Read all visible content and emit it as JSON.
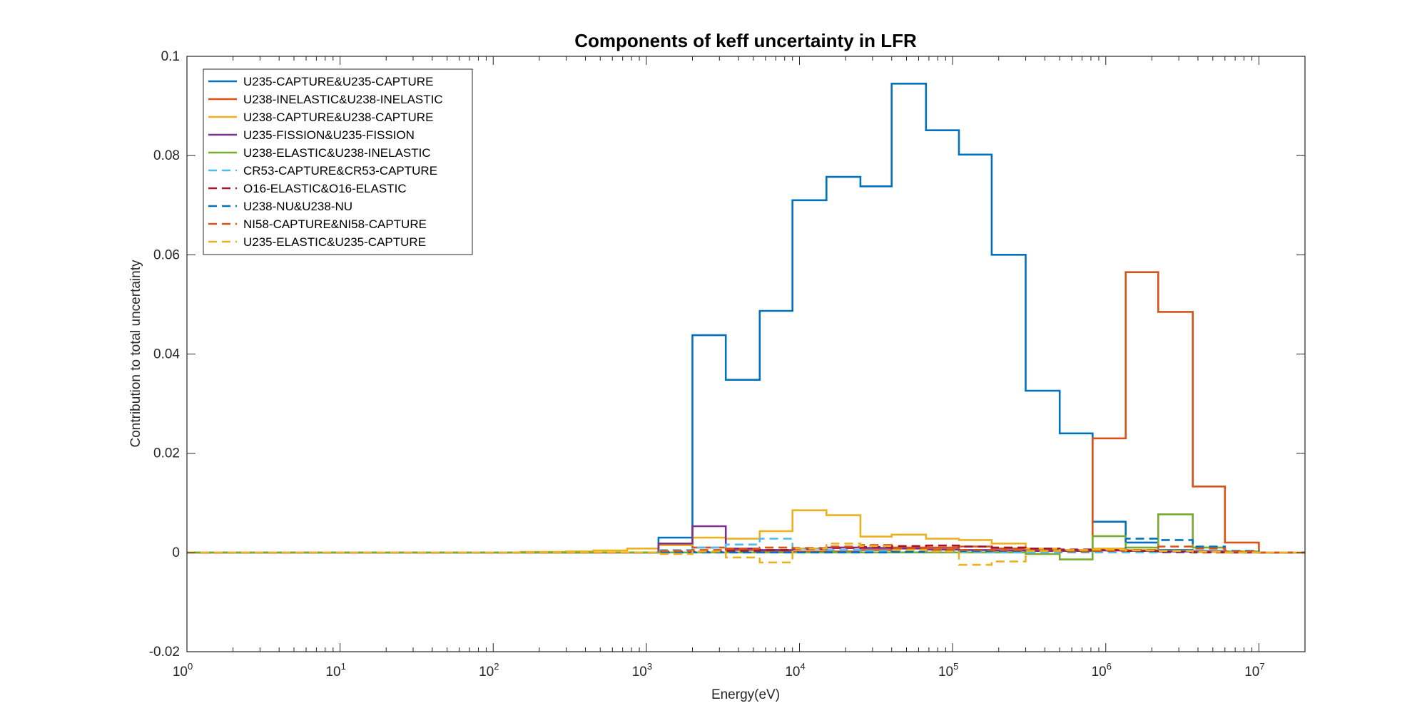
{
  "chart_data": {
    "type": "line",
    "title": "Components of keff uncertainty in LFR",
    "xlabel": "Energy(eV)",
    "ylabel": "Contribution to total uncertainty",
    "x_scale": "log",
    "xlim": [
      1,
      20000000
    ],
    "ylim": [
      -0.02,
      0.1
    ],
    "x_ticks": [
      1,
      10,
      100,
      1000,
      10000,
      100000,
      1000000,
      10000000
    ],
    "x_tick_labels": [
      {
        "base": "10",
        "exp": "0"
      },
      {
        "base": "10",
        "exp": "1"
      },
      {
        "base": "10",
        "exp": "2"
      },
      {
        "base": "10",
        "exp": "3"
      },
      {
        "base": "10",
        "exp": "4"
      },
      {
        "base": "10",
        "exp": "5"
      },
      {
        "base": "10",
        "exp": "6"
      },
      {
        "base": "10",
        "exp": "7"
      }
    ],
    "y_ticks": [
      -0.02,
      0,
      0.02,
      0.04,
      0.06,
      0.08,
      0.1
    ],
    "y_tick_labels": [
      "-0.02",
      "0",
      "0.02",
      "0.04",
      "0.06",
      "0.08",
      "0.1"
    ],
    "grid": false,
    "legend_position": "top-left",
    "group_edges": [
      1,
      10,
      100,
      150,
      300,
      450,
      750,
      1200,
      2000,
      3300,
      5500,
      9000,
      15000,
      25000,
      40000,
      67000,
      110000,
      180000,
      300000,
      500000,
      820000,
      1350000,
      2200000,
      3700000,
      6000000,
      10000000,
      20000000
    ],
    "series": [
      {
        "name": "U235-CAPTURE&U235-CAPTURE",
        "color": "#0072BD",
        "dash": "solid",
        "values": [
          0,
          0,
          0,
          0,
          0,
          0,
          0,
          0.003,
          0.0438,
          0.0348,
          0.0487,
          0.071,
          0.0757,
          0.0738,
          0.0945,
          0.0851,
          0.0802,
          0.06,
          0.0326,
          0.024,
          0.0062,
          0.002,
          0.0005,
          0.0003,
          0.0001,
          0,
          0
        ]
      },
      {
        "name": "U238-INELASTIC&U238-INELASTIC",
        "color": "#D95319",
        "dash": "solid",
        "values": [
          0,
          0,
          0,
          0,
          0,
          0,
          0,
          0.0015,
          0.001,
          0.0005,
          0.0003,
          0.0002,
          0.0002,
          0.0005,
          0.001,
          0.001,
          0.0012,
          0.0008,
          0.0005,
          0.0005,
          0.023,
          0.0565,
          0.0485,
          0.0133,
          0.002,
          0,
          0
        ]
      },
      {
        "name": "U238-CAPTURE&U238-CAPTURE",
        "color": "#EDB120",
        "dash": "solid",
        "values": [
          0,
          0,
          0,
          0.0001,
          0.0002,
          0.0004,
          0.0008,
          0.0015,
          0.003,
          0.0028,
          0.0043,
          0.0085,
          0.0075,
          0.0032,
          0.0036,
          0.0028,
          0.0025,
          0.0018,
          0.0008,
          0.0005,
          0.0008,
          0.0005,
          0.0003,
          0.0002,
          0,
          0,
          0
        ]
      },
      {
        "name": "U235-FISSION&U235-FISSION",
        "color": "#7E2F8E",
        "dash": "solid",
        "values": [
          0,
          0,
          0,
          0,
          0,
          0,
          0,
          0.0018,
          0.0053,
          0.0008,
          0.0005,
          0.0008,
          0.001,
          0.0009,
          0.0008,
          0.0006,
          0.0005,
          0.0004,
          0.0003,
          0.0003,
          0.0004,
          0.0003,
          0.0002,
          0.0001,
          0,
          0,
          0
        ]
      },
      {
        "name": "U238-ELASTIC&U238-INELASTIC",
        "color": "#77AC30",
        "dash": "solid",
        "values": [
          0,
          0,
          0,
          0,
          0,
          0,
          0,
          0,
          0,
          0,
          0,
          0,
          0,
          0,
          0,
          0,
          0,
          0,
          -0.0003,
          -0.0014,
          0.0033,
          0.001,
          0.0077,
          0.001,
          0.0002,
          0,
          0
        ]
      },
      {
        "name": "CR53-CAPTURE&CR53-CAPTURE",
        "color": "#4DBEEE",
        "dash": "dashed",
        "values": [
          0,
          0,
          0,
          0,
          0,
          0,
          0,
          0.0005,
          0.001,
          0.0016,
          0.0028,
          0.0008,
          0.0005,
          0.0003,
          0.0002,
          0.0002,
          0.0001,
          0,
          0,
          0,
          0,
          0,
          0,
          0,
          0,
          0,
          0
        ]
      },
      {
        "name": "O16-ELASTIC&O16-ELASTIC",
        "color": "#A2142F",
        "dash": "dashed",
        "values": [
          0,
          0,
          0,
          0,
          0,
          0,
          0,
          0.0002,
          0.0001,
          0.0003,
          0.0005,
          0.0007,
          0.0009,
          0.0011,
          0.0013,
          0.0014,
          0.0012,
          0.001,
          0.0008,
          0.0006,
          0.0005,
          0.0003,
          0.0001,
          0,
          0,
          0,
          0
        ]
      },
      {
        "name": "U238-NU&U238-NU",
        "color": "#0072BD",
        "dash": "dashed",
        "values": [
          0,
          0,
          0,
          0,
          0,
          0,
          0,
          0,
          0,
          0,
          0,
          0,
          0,
          0,
          0.0001,
          0.0002,
          0.0003,
          0.0003,
          0.0003,
          0.0003,
          0.0005,
          0.0028,
          0.0025,
          0.0012,
          0.0003,
          0,
          0
        ]
      },
      {
        "name": "NI58-CAPTURE&NI58-CAPTURE",
        "color": "#D95319",
        "dash": "dashed",
        "values": [
          0,
          0,
          0,
          0,
          0,
          0,
          0,
          0.0003,
          0.0005,
          0.0008,
          0.001,
          0.0009,
          0.0012,
          0.0015,
          0.0008,
          0.0006,
          0.0005,
          0.0004,
          0.0003,
          0.0002,
          0.0003,
          0.0005,
          0.0012,
          0.0008,
          0.0002,
          0,
          0
        ]
      },
      {
        "name": "U235-ELASTIC&U235-CAPTURE",
        "color": "#EDB120",
        "dash": "dashed",
        "values": [
          0,
          0,
          0,
          0,
          0,
          0,
          0,
          -0.0003,
          0.0002,
          -0.001,
          -0.002,
          0.0008,
          0.0018,
          0.0013,
          0.0005,
          0.0002,
          -0.0025,
          -0.0018,
          0.0003,
          0.0005,
          0.0006,
          0.0004,
          0.0003,
          0.0001,
          0,
          0,
          0
        ]
      }
    ]
  }
}
